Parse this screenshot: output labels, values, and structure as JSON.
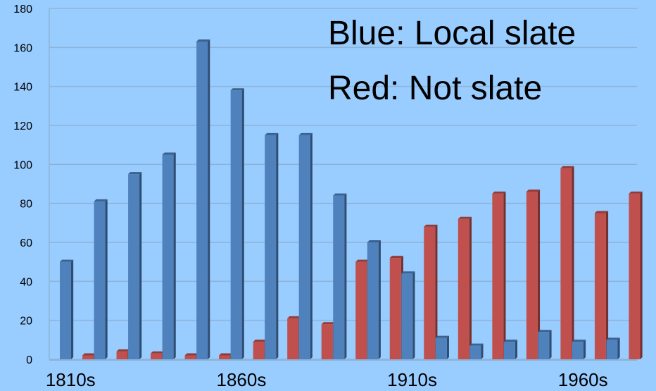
{
  "chart_data": {
    "type": "bar",
    "categories": [
      "1810s",
      "1820s",
      "1830s",
      "1840s",
      "1850s",
      "1860s",
      "1870s",
      "1880s",
      "1890s",
      "1900s",
      "1910s",
      "1920s",
      "1930s",
      "1940s",
      "1950s",
      "1960s",
      "1970s"
    ],
    "x_tick_labels": [
      "1810s",
      "1860s",
      "1910s",
      "1960s"
    ],
    "y_ticks": [
      0,
      20,
      40,
      60,
      80,
      100,
      120,
      140,
      160,
      180
    ],
    "ylim": [
      0,
      180
    ],
    "grid": true,
    "series": [
      {
        "values": [
          50,
          81,
          95,
          105,
          163,
          138,
          115,
          115,
          84,
          60,
          44,
          11,
          7,
          9,
          14,
          9,
          10
        ],
        "color": "#4f81bd"
      },
      {
        "values": [
          2,
          4,
          3,
          2,
          2,
          9,
          21,
          18,
          50,
          52,
          68,
          72,
          85,
          86,
          98,
          75,
          85
        ],
        "color": "#c0504d"
      }
    ],
    "annotations": [
      "Blue: Local slate",
      "Red: Not slate"
    ]
  },
  "colors": {
    "background": "#99ccff",
    "grid": "#8eb3d6",
    "blue": "#4f81bd",
    "red": "#c0504d"
  }
}
